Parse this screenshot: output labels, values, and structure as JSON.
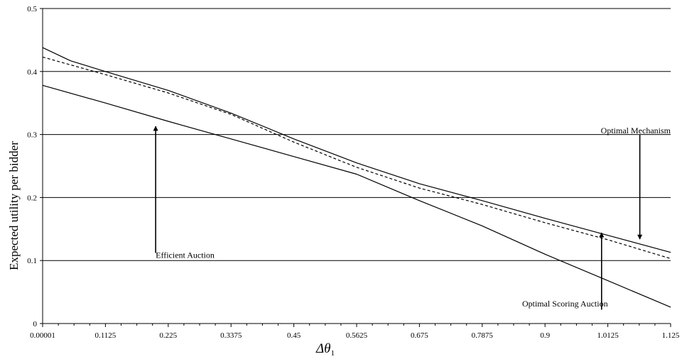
{
  "chart_data": {
    "type": "line",
    "title": "",
    "xlabel": "Δθ",
    "xlabel_subscript": "1",
    "ylabel": "Expected utility per bidder",
    "xlim": [
      1e-05,
      1.125
    ],
    "ylim": [
      0,
      0.5
    ],
    "grid": "horizontal",
    "legend": "none",
    "x_ticks": [
      1e-05,
      0.1125,
      0.225,
      0.3375,
      0.45,
      0.5625,
      0.675,
      0.7875,
      0.9,
      1.0125,
      1.125
    ],
    "x_tick_labels": [
      "0.00001",
      "0.1125",
      "0.225",
      "0.3375",
      "0.45",
      "0.5625",
      "0.675",
      "0.7875",
      "0.9",
      "1.0125",
      "1.125"
    ],
    "y_ticks": [
      0,
      0.1,
      0.2,
      0.3,
      0.4,
      0.5
    ],
    "y_tick_labels": [
      "0",
      "0.1",
      "0.2",
      "0.3",
      "0.4",
      "0.5"
    ],
    "series": [
      {
        "style": "solid",
        "x": [
          1e-05,
          0.05,
          0.1125,
          0.225,
          0.3375,
          0.45,
          0.5625,
          0.675,
          0.7875,
          0.9,
          1.0125,
          1.125
        ],
        "y": [
          0.438,
          0.417,
          0.4,
          0.37,
          0.334,
          0.293,
          0.255,
          0.222,
          0.195,
          0.167,
          0.14,
          0.113
        ]
      },
      {
        "style": "dashed",
        "x": [
          1e-05,
          0.1125,
          0.225,
          0.3375,
          0.45,
          0.5625,
          0.675,
          0.7875,
          0.9,
          1.0125,
          1.125
        ],
        "y": [
          0.423,
          0.395,
          0.366,
          0.332,
          0.288,
          0.248,
          0.215,
          0.189,
          0.16,
          0.133,
          0.103
        ]
      },
      {
        "style": "solid",
        "x": [
          1e-05,
          0.1125,
          0.225,
          0.3375,
          0.45,
          0.5625,
          0.675,
          0.7875,
          0.9,
          1.0125,
          1.125
        ],
        "y": [
          0.378,
          0.35,
          0.321,
          0.293,
          0.265,
          0.237,
          0.195,
          0.155,
          0.11,
          0.068,
          0.026
        ]
      }
    ],
    "annotations": [
      {
        "text": "Optimal Mechanism",
        "label_x": 1.125,
        "label_y": 0.302,
        "anchor": "end",
        "arrow_from": [
          1.0698,
          0.3
        ],
        "arrow_to": [
          1.0698,
          0.134
        ]
      },
      {
        "text": "Efficient Auction",
        "label_x": 0.2025,
        "label_y": 0.104,
        "anchor": "start",
        "arrow_from": [
          0.2025,
          0.112
        ],
        "arrow_to": [
          0.2025,
          0.313
        ]
      },
      {
        "text": "Optimal Scoring Auction",
        "label_x": 1.0125,
        "label_y": 0.027,
        "anchor": "end",
        "arrow_from": [
          1.0013,
          0.022
        ],
        "arrow_to": [
          1.0013,
          0.144
        ]
      }
    ]
  }
}
